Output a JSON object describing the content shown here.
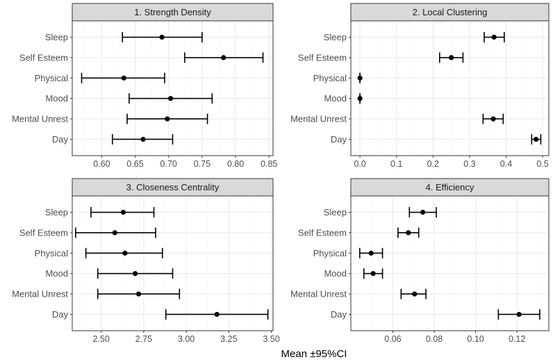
{
  "x_axis_title": "Mean ±95%CI",
  "colors": {
    "strip_fill": "#d9d9d9",
    "strip_border": "#333333",
    "panel_border": "#333333",
    "grid_major": "#ebebeb",
    "grid_minor": "#f5f5f5",
    "point": "#000000",
    "bar": "#000000"
  },
  "chart_data": [
    {
      "type": "dot-errorbar",
      "title": "1. Strength Density",
      "categories": [
        "Sleep",
        "Self Esteem",
        "Physical",
        "Mood",
        "Mental Unrest",
        "Day"
      ],
      "means": [
        0.69,
        0.782,
        0.633,
        0.703,
        0.698,
        0.662
      ],
      "lower": [
        0.631,
        0.724,
        0.57,
        0.641,
        0.638,
        0.616
      ],
      "upper": [
        0.75,
        0.841,
        0.694,
        0.765,
        0.758,
        0.706
      ],
      "xlim": [
        0.556,
        0.856
      ],
      "xticks": [
        0.6,
        0.65,
        0.7,
        0.75,
        0.8,
        0.85
      ],
      "xtick_labels": [
        "0.60",
        "0.65",
        "0.70",
        "0.75",
        "0.80",
        "0.85"
      ]
    },
    {
      "type": "dot-errorbar",
      "title": "2. Local Clustering",
      "categories": [
        "Sleep",
        "Self Esteem",
        "Physical",
        "Mood",
        "Mental Unrest",
        "Day"
      ],
      "means": [
        0.367,
        0.25,
        0.0,
        0.0,
        0.365,
        0.482
      ],
      "lower": [
        0.34,
        0.218,
        0.0,
        0.0,
        0.337,
        0.47
      ],
      "upper": [
        0.395,
        0.282,
        0.0,
        0.0,
        0.392,
        0.495
      ],
      "xlim": [
        -0.025,
        0.517
      ],
      "xticks": [
        0.0,
        0.1,
        0.2,
        0.3,
        0.4,
        0.5
      ],
      "xtick_labels": [
        "0.0",
        "0.1",
        "0.2",
        "0.3",
        "0.4",
        "0.5"
      ]
    },
    {
      "type": "dot-errorbar",
      "title": "3. Closeness Centrality",
      "categories": [
        "Sleep",
        "Self Esteem",
        "Physical",
        "Mood",
        "Mental Unrest",
        "Day"
      ],
      "means": [
        2.63,
        2.58,
        2.64,
        2.7,
        2.72,
        3.18
      ],
      "lower": [
        2.44,
        2.35,
        2.41,
        2.48,
        2.48,
        2.88
      ],
      "upper": [
        2.81,
        2.82,
        2.86,
        2.92,
        2.96,
        3.48
      ],
      "xlim": [
        2.33,
        3.51
      ],
      "xticks": [
        2.5,
        2.75,
        3.0,
        3.25,
        3.5
      ],
      "xtick_labels": [
        "2.50",
        "2.75",
        "3.00",
        "3.25",
        "3.50"
      ]
    },
    {
      "type": "dot-errorbar",
      "title": "4. Efficiency",
      "categories": [
        "Sleep",
        "Self Esteem",
        "Physical",
        "Mood",
        "Mental Unrest",
        "Day"
      ],
      "means": [
        0.0745,
        0.0675,
        0.0495,
        0.0505,
        0.0705,
        0.121
      ],
      "lower": [
        0.068,
        0.0625,
        0.044,
        0.046,
        0.064,
        0.111
      ],
      "upper": [
        0.081,
        0.0725,
        0.055,
        0.055,
        0.076,
        0.131
      ],
      "xlim": [
        0.0397,
        0.1354
      ],
      "xticks": [
        0.06,
        0.08,
        0.1,
        0.12
      ],
      "xtick_labels": [
        "0.06",
        "0.08",
        "0.10",
        "0.12"
      ]
    }
  ]
}
